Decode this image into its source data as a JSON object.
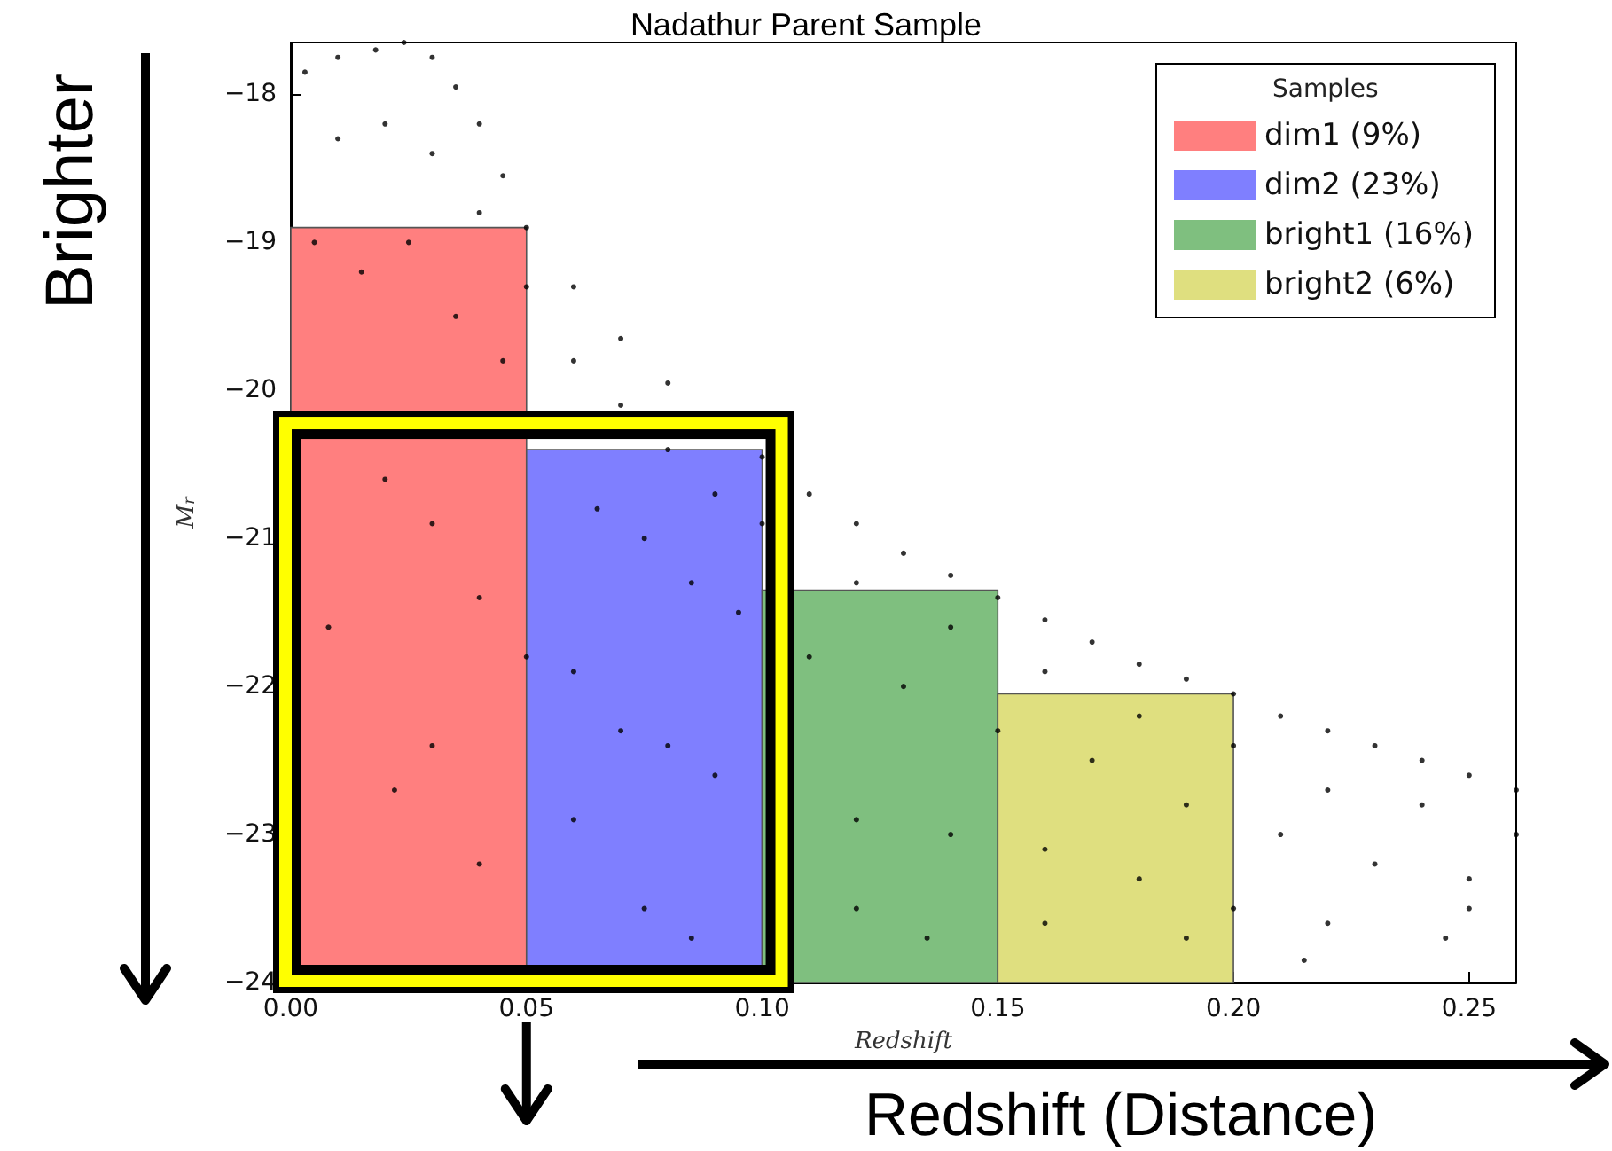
{
  "chart_data": {
    "type": "scatter",
    "title": "Nadathur Parent Sample",
    "xlabel": "Redshift",
    "ylabel": "M$_{r}$",
    "legend_title": "Samples",
    "legend": "top right",
    "grid": false,
    "marker": "circle",
    "xlim": [
      0,
      0.26
    ],
    "ylim": [
      -24,
      -17.65
    ],
    "xticks": [
      {
        "value": 0,
        "label": "0.00"
      },
      {
        "value": 0.05,
        "label": "0.05"
      },
      {
        "value": 0.1,
        "label": "0.10"
      },
      {
        "value": 0.15,
        "label": "0.15"
      },
      {
        "value": 0.2,
        "label": "0.20"
      },
      {
        "value": 0.25,
        "label": "0.25"
      }
    ],
    "yticks": [
      {
        "value": -24,
        "label": "−24"
      },
      {
        "value": -23,
        "label": "−23"
      },
      {
        "value": -22,
        "label": "−22"
      },
      {
        "value": -21,
        "label": "−21"
      },
      {
        "value": -20,
        "label": "−20"
      },
      {
        "value": -19,
        "label": "−19"
      },
      {
        "value": -18,
        "label": "−18"
      }
    ],
    "annotations": [
      "Brighter",
      "Redshift (Distance)"
    ],
    "series": [
      {
        "color": "#000000",
        "x": [
          0.003,
          0.01,
          0.018,
          0.024,
          0.03,
          0.035,
          0.04,
          0.045,
          0.05,
          0.06,
          0.07,
          0.08,
          0.1,
          0.11,
          0.12,
          0.13,
          0.14,
          0.15,
          0.16,
          0.17,
          0.18,
          0.19,
          0.2,
          0.21,
          0.22,
          0.23,
          0.24,
          0.25,
          0.26,
          0.01,
          0.02,
          0.03,
          0.04,
          0.05,
          0.06,
          0.07,
          0.08,
          0.09,
          0.1,
          0.12,
          0.14,
          0.16,
          0.18,
          0.2,
          0.22,
          0.24,
          0.26,
          0.005,
          0.015,
          0.025,
          0.035,
          0.045,
          0.065,
          0.075,
          0.085,
          0.095,
          0.11,
          0.13,
          0.15,
          0.17,
          0.19,
          0.21,
          0.23,
          0.25,
          0.02,
          0.03,
          0.04,
          0.05,
          0.06,
          0.07,
          0.08,
          0.09,
          0.12,
          0.14,
          0.16,
          0.18,
          0.2,
          0.22,
          0.245,
          0.008,
          0.022,
          0.03,
          0.04,
          0.06,
          0.075,
          0.085,
          0.12,
          0.135,
          0.16,
          0.19,
          0.215,
          0.25
        ],
        "values": [
          -17.85,
          -17.75,
          -17.7,
          -17.65,
          -17.75,
          -17.95,
          -18.2,
          -18.55,
          -18.9,
          -19.3,
          -19.65,
          -19.95,
          -20.45,
          -20.7,
          -20.9,
          -21.1,
          -21.25,
          -21.4,
          -21.55,
          -21.7,
          -21.85,
          -21.95,
          -22.05,
          -22.2,
          -22.3,
          -22.4,
          -22.5,
          -22.6,
          -22.7,
          -18.3,
          -18.2,
          -18.4,
          -18.8,
          -19.3,
          -19.8,
          -20.1,
          -20.4,
          -20.7,
          -20.9,
          -21.3,
          -21.6,
          -21.9,
          -22.2,
          -22.4,
          -22.7,
          -22.8,
          -23.0,
          -19.0,
          -19.2,
          -19.0,
          -19.5,
          -19.8,
          -20.8,
          -21.0,
          -21.3,
          -21.5,
          -21.8,
          -22.0,
          -22.3,
          -22.5,
          -22.8,
          -23.0,
          -23.2,
          -23.3,
          -20.6,
          -20.9,
          -21.4,
          -21.8,
          -21.9,
          -22.3,
          -22.4,
          -22.6,
          -22.9,
          -23.0,
          -23.1,
          -23.3,
          -23.5,
          -23.6,
          -23.7,
          -21.6,
          -22.7,
          -22.4,
          -23.2,
          -22.9,
          -23.5,
          -23.7,
          -23.5,
          -23.7,
          -23.6,
          -23.7,
          -23.85,
          -23.5
        ]
      },
      {
        "type": "histogram",
        "name": "dim1 (9%)",
        "color": "#ff7f7f",
        "bins": [
          0,
          0.05
        ],
        "base": [
          -24
        ],
        "values": [
          5.1
        ]
      },
      {
        "type": "histogram",
        "name": "dim2 (23%)",
        "color": "#7f7fff",
        "bins": [
          0.05,
          0.1
        ],
        "base": [
          -24
        ],
        "values": [
          3.6
        ]
      },
      {
        "type": "histogram",
        "name": "bright1 (16%)",
        "color": "#7fbf7f",
        "bins": [
          0.1,
          0.15
        ],
        "base": [
          -24
        ],
        "values": [
          2.65
        ]
      },
      {
        "type": "histogram",
        "name": "bright2 (6%)",
        "color": "#dfdf7f",
        "bins": [
          0.15,
          0.2
        ],
        "base": [
          -24
        ],
        "values": [
          1.95
        ]
      }
    ]
  }
}
